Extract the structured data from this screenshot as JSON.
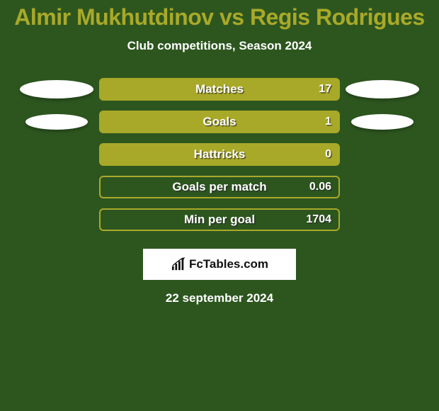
{
  "background_color": "#2d561f",
  "title": "Almir Mukhutdinov vs Regis Rodrigues",
  "title_color": "#a9a929",
  "subtitle": "Club competitions, Season 2024",
  "subtitle_color": "#ffffff",
  "bar_fill_color": "#a9a929",
  "bar_border_color": "#a9a929",
  "bar_label_color": "#ffffff",
  "ellipse_color": "#ffffff",
  "stats": [
    {
      "label": "Matches",
      "value": "17",
      "fill_pct": 100,
      "left_ellipse": true,
      "right_ellipse": true,
      "ellipse_size": "large"
    },
    {
      "label": "Goals",
      "value": "1",
      "fill_pct": 100,
      "left_ellipse": true,
      "right_ellipse": true,
      "ellipse_size": "small"
    },
    {
      "label": "Hattricks",
      "value": "0",
      "fill_pct": 100,
      "left_ellipse": false,
      "right_ellipse": false
    },
    {
      "label": "Goals per match",
      "value": "0.06",
      "fill_pct": 0,
      "left_ellipse": false,
      "right_ellipse": false
    },
    {
      "label": "Min per goal",
      "value": "1704",
      "fill_pct": 0,
      "left_ellipse": false,
      "right_ellipse": false
    }
  ],
  "logo_text": "FcTables.com",
  "logo_bar_color": "#111111",
  "logo_line_color": "#111111",
  "date": "22 september 2024",
  "date_color": "#ffffff"
}
